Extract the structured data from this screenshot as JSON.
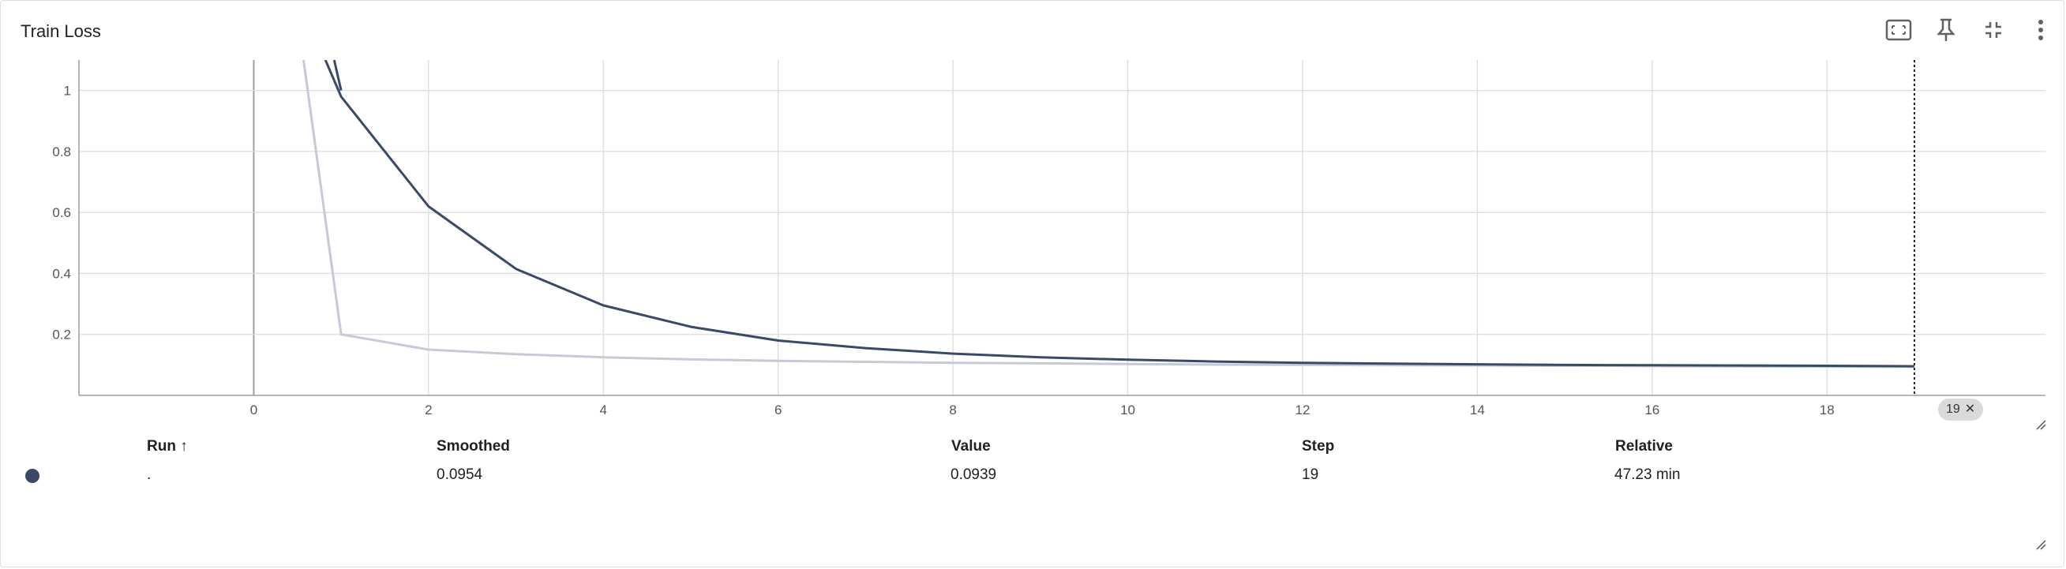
{
  "card": {
    "title": "Train Loss"
  },
  "toolbar": {
    "icons": [
      "fit-domain-icon",
      "pin-icon",
      "collapse-icon",
      "more-vert-icon"
    ]
  },
  "step_badge": {
    "label": "19",
    "close": "✕"
  },
  "table": {
    "headers": {
      "run": "Run ↑",
      "smoothed": "Smoothed",
      "value": "Value",
      "step": "Step",
      "relative": "Relative"
    },
    "row": {
      "run": ".",
      "smoothed": "0.0954",
      "value": "0.0939",
      "step": "19",
      "relative": "47.23 min",
      "color": "#3a4a66"
    }
  },
  "chart_data": {
    "type": "line",
    "xlim": [
      -2,
      20.5
    ],
    "ylim": [
      0,
      1.1
    ],
    "x_ticks": [
      0,
      2,
      4,
      6,
      8,
      10,
      12,
      14,
      16,
      18
    ],
    "y_ticks": [
      0.2,
      0.4,
      0.6,
      0.8,
      1
    ],
    "y_tick_labels": [
      "0.2",
      "0.4",
      "0.6",
      "0.8",
      "1"
    ],
    "grid": true,
    "cursor_step": 19,
    "series": [
      {
        "role": "raw",
        "color": "#c5cad6",
        "x": [
          0.57,
          1,
          2,
          3,
          4,
          5,
          6,
          7,
          8,
          9,
          10,
          11,
          12,
          13,
          14,
          15,
          16,
          17,
          18,
          19
        ],
        "y": [
          1.1,
          0.2,
          0.15,
          0.135,
          0.125,
          0.118,
          0.113,
          0.11,
          0.107,
          0.105,
          0.103,
          0.101,
          0.1,
          0.099,
          0.098,
          0.097,
          0.096,
          0.095,
          0.094,
          0.0939
        ]
      },
      {
        "role": "smoothed",
        "color": "#3a4a66",
        "x": [
          0.82,
          1,
          2,
          3,
          4,
          5,
          6,
          7,
          8,
          9,
          10,
          11,
          12,
          13,
          14,
          15,
          16,
          17,
          18,
          19
        ],
        "y": [
          1.1,
          0.98,
          0.62,
          0.415,
          0.295,
          0.225,
          0.18,
          0.155,
          0.137,
          0.125,
          0.117,
          0.111,
          0.107,
          0.104,
          0.102,
          0.1,
          0.099,
          0.098,
          0.097,
          0.0954
        ]
      },
      {
        "role": "smoothed-tail",
        "color": "#3a4a66",
        "x": [
          0.92,
          1
        ],
        "y": [
          1.1,
          1.0
        ]
      }
    ]
  }
}
